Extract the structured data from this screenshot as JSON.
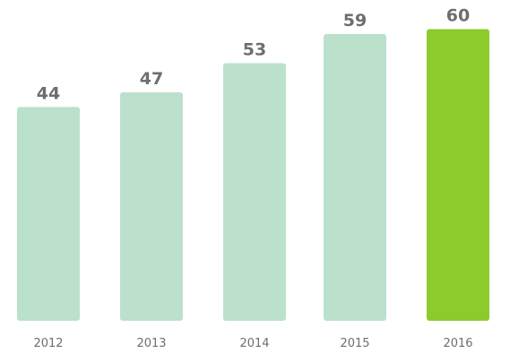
{
  "chart_data": {
    "type": "bar",
    "categories": [
      "2012",
      "2013",
      "2014",
      "2015",
      "2016"
    ],
    "values": [
      44,
      47,
      53,
      59,
      60
    ],
    "ylim": [
      0,
      66
    ],
    "grid": false,
    "legend": "none",
    "colors": {
      "default_bar": "#bbe1cd",
      "highlight_bar": "#8dca2c",
      "label_text": "#6e6e6e"
    },
    "highlight_index": 4
  }
}
